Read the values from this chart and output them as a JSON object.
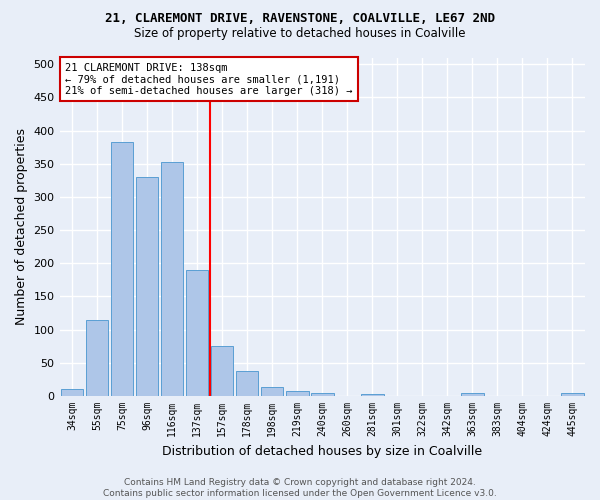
{
  "title": "21, CLAREMONT DRIVE, RAVENSTONE, COALVILLE, LE67 2ND",
  "subtitle": "Size of property relative to detached houses in Coalville",
  "xlabel": "Distribution of detached houses by size in Coalville",
  "ylabel": "Number of detached properties",
  "categories": [
    "34sqm",
    "55sqm",
    "75sqm",
    "96sqm",
    "116sqm",
    "137sqm",
    "157sqm",
    "178sqm",
    "198sqm",
    "219sqm",
    "240sqm",
    "260sqm",
    "281sqm",
    "301sqm",
    "322sqm",
    "342sqm",
    "363sqm",
    "383sqm",
    "404sqm",
    "424sqm",
    "445sqm"
  ],
  "values": [
    11,
    115,
    383,
    330,
    352,
    190,
    75,
    38,
    13,
    8,
    4,
    0,
    3,
    0,
    0,
    0,
    4,
    0,
    0,
    0,
    4
  ],
  "bar_color": "#aec6e8",
  "bar_edge_color": "#5a9fd4",
  "bg_color": "#e8eef8",
  "grid_color": "#ffffff",
  "annotation_line1": "21 CLAREMONT DRIVE: 138sqm",
  "annotation_line2": "← 79% of detached houses are smaller (1,191)",
  "annotation_line3": "21% of semi-detached houses are larger (318) →",
  "annotation_box_color": "#ffffff",
  "annotation_box_edge": "#cc0000",
  "footer_line1": "Contains HM Land Registry data © Crown copyright and database right 2024.",
  "footer_line2": "Contains public sector information licensed under the Open Government Licence v3.0.",
  "ylim": [
    0,
    510
  ],
  "yticks": [
    0,
    50,
    100,
    150,
    200,
    250,
    300,
    350,
    400,
    450,
    500
  ],
  "red_line_x": 5.5
}
